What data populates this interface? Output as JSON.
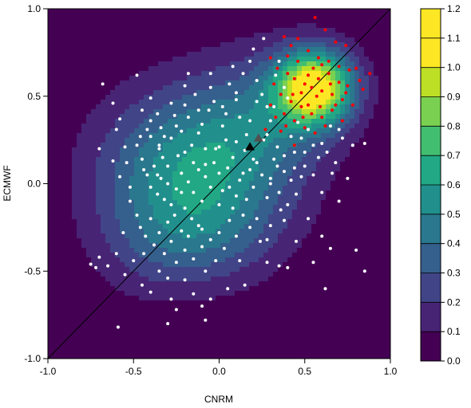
{
  "chart_data": {
    "type": "scatter",
    "title": "",
    "xlabel": "CNRM",
    "ylabel": "ECMWF",
    "xlim": [
      -1.0,
      1.0
    ],
    "ylim": [
      -1.0,
      1.0
    ],
    "x_ticks": [
      "-1.0",
      "-0.5",
      "0.0",
      "0.5",
      "1.0"
    ],
    "y_ticks": [
      "-1.0",
      "-0.5",
      "0.0",
      "0.5",
      "1.0"
    ],
    "background_density": {
      "type": "filled-contour",
      "levels": [
        0.0,
        0.1,
        0.2,
        0.3,
        0.4,
        0.5,
        0.6,
        0.7,
        0.8,
        0.9,
        1.0,
        1.1,
        1.2
      ],
      "level_labels": [
        "0.0",
        "0.1",
        "0.2",
        "0.3",
        "0.4",
        "0.5",
        "0.6",
        "0.7",
        "0.8",
        "0.9",
        "1.0",
        "1.1",
        "1.2"
      ],
      "colors": [
        "#440154",
        "#482475",
        "#414487",
        "#355f8d",
        "#2a788e",
        "#21908d",
        "#22a884",
        "#42be71",
        "#7ad151",
        "#bddf26",
        "#fde725",
        "#fde725"
      ],
      "colorbar_position": "right",
      "kernel_peaks": [
        {
          "x": 0.56,
          "y": 0.55,
          "w": 1.05,
          "sx": 0.16,
          "sy": 0.15
        },
        {
          "x": 0.3,
          "y": 0.4,
          "w": 0.25,
          "sx": 0.28,
          "sy": 0.28
        },
        {
          "x": -0.15,
          "y": 0.1,
          "w": 0.55,
          "sx": 0.38,
          "sy": 0.32
        },
        {
          "x": -0.05,
          "y": -0.3,
          "w": 0.2,
          "sx": 0.3,
          "sy": 0.22
        },
        {
          "x": -0.45,
          "y": -0.35,
          "w": 0.12,
          "sx": 0.25,
          "sy": 0.25
        }
      ]
    },
    "diagonal_line": {
      "from": [
        -1.0,
        -1.0
      ],
      "to": [
        1.0,
        1.0
      ],
      "color": "#000000"
    },
    "series": [
      {
        "color": "#ffffff",
        "points": [
          [
            -0.68,
            0.57
          ],
          [
            -0.62,
            0.46
          ],
          [
            -0.58,
            0.37
          ],
          [
            -0.55,
            0.21
          ],
          [
            -0.48,
            0.62
          ],
          [
            -0.45,
            0.42
          ],
          [
            -0.42,
            0.31
          ],
          [
            -0.4,
            0.27
          ],
          [
            -0.35,
            0.2
          ],
          [
            -0.33,
            0.15
          ],
          [
            -0.3,
            0.1
          ],
          [
            -0.28,
            0.26
          ],
          [
            -0.25,
            0.33
          ],
          [
            -0.22,
            0.3
          ],
          [
            -0.2,
            0.45
          ],
          [
            -0.18,
            0.38
          ],
          [
            -0.16,
            0.22
          ],
          [
            -0.15,
            0.12
          ],
          [
            -0.12,
            0.29
          ],
          [
            -0.1,
            0.34
          ],
          [
            -0.08,
            0.2
          ],
          [
            -0.06,
            0.42
          ],
          [
            -0.05,
            0.55
          ],
          [
            -0.03,
            0.47
          ],
          [
            0.02,
            0.33
          ],
          [
            0.04,
            0.4
          ],
          [
            0.06,
            0.57
          ],
          [
            0.1,
            0.48
          ],
          [
            0.14,
            0.63
          ],
          [
            0.18,
            0.7
          ],
          [
            0.2,
            0.77
          ],
          [
            0.22,
            0.59
          ],
          [
            0.25,
            0.51
          ],
          [
            0.28,
            0.44
          ],
          [
            0.3,
            0.36
          ],
          [
            0.33,
            0.62
          ],
          [
            0.35,
            0.7
          ],
          [
            0.38,
            0.55
          ],
          [
            0.4,
            0.49
          ],
          [
            0.42,
            0.27
          ],
          [
            0.44,
            0.18
          ],
          [
            0.46,
            0.35
          ],
          [
            0.48,
            0.26
          ],
          [
            0.5,
            0.1
          ],
          [
            0.52,
            0.31
          ],
          [
            0.55,
            0.22
          ],
          [
            0.58,
            0.15
          ],
          [
            0.6,
            0.23
          ],
          [
            0.63,
            0.18
          ],
          [
            0.65,
            0.33
          ],
          [
            0.68,
            0.12
          ],
          [
            0.7,
            0.31
          ],
          [
            0.72,
            0.26
          ],
          [
            0.78,
            0.22
          ],
          [
            0.85,
            0.23
          ],
          [
            -0.45,
            0.14
          ],
          [
            -0.42,
            0.05
          ],
          [
            -0.4,
            -0.02
          ],
          [
            -0.38,
            0.1
          ],
          [
            -0.36,
            -0.06
          ],
          [
            -0.34,
            0.03
          ],
          [
            -0.32,
            -0.09
          ],
          [
            -0.3,
            0.0
          ],
          [
            -0.28,
            -0.12
          ],
          [
            -0.25,
            -0.03
          ],
          [
            -0.22,
            0.06
          ],
          [
            -0.2,
            -0.14
          ],
          [
            -0.18,
            0.01
          ],
          [
            -0.15,
            -0.05
          ],
          [
            -0.12,
            0.08
          ],
          [
            -0.1,
            -0.1
          ],
          [
            -0.08,
            0.04
          ],
          [
            -0.05,
            -0.02
          ],
          [
            -0.03,
            0.12
          ],
          [
            0.0,
            0.06
          ],
          [
            0.02,
            -0.04
          ],
          [
            0.05,
            0.09
          ],
          [
            0.08,
            0.15
          ],
          [
            0.1,
            -0.07
          ],
          [
            0.12,
            0.02
          ],
          [
            0.15,
            0.19
          ],
          [
            0.18,
            0.08
          ],
          [
            0.2,
            -0.02
          ],
          [
            0.22,
            0.12
          ],
          [
            0.25,
            0.05
          ],
          [
            0.28,
            -0.08
          ],
          [
            0.3,
            0.03
          ],
          [
            0.32,
            0.14
          ],
          [
            0.35,
            -0.05
          ],
          [
            0.38,
            0.07
          ],
          [
            0.4,
            -0.12
          ],
          [
            0.42,
            0.02
          ],
          [
            0.45,
            -0.06
          ],
          [
            0.48,
            0.04
          ],
          [
            -0.52,
            -0.1
          ],
          [
            -0.48,
            -0.18
          ],
          [
            -0.46,
            -0.25
          ],
          [
            -0.43,
            -0.3
          ],
          [
            -0.4,
            -0.2
          ],
          [
            -0.38,
            -0.35
          ],
          [
            -0.35,
            -0.28
          ],
          [
            -0.32,
            -0.4
          ],
          [
            -0.3,
            -0.22
          ],
          [
            -0.28,
            -0.33
          ],
          [
            -0.25,
            -0.45
          ],
          [
            -0.22,
            -0.27
          ],
          [
            -0.2,
            -0.38
          ],
          [
            -0.18,
            -0.3
          ],
          [
            -0.15,
            -0.43
          ],
          [
            -0.12,
            -0.24
          ],
          [
            -0.1,
            -0.36
          ],
          [
            -0.08,
            -0.5
          ],
          [
            -0.05,
            -0.32
          ],
          [
            -0.02,
            -0.44
          ],
          [
            0.0,
            -0.28
          ],
          [
            0.03,
            -0.37
          ],
          [
            0.06,
            -0.21
          ],
          [
            0.1,
            -0.3
          ],
          [
            0.14,
            -0.18
          ],
          [
            0.18,
            -0.25
          ],
          [
            0.22,
            -0.2
          ],
          [
            0.3,
            -0.24
          ],
          [
            0.38,
            -0.21
          ],
          [
            0.45,
            -0.33
          ],
          [
            0.52,
            -0.2
          ],
          [
            0.6,
            -0.3
          ],
          [
            0.65,
            -0.37
          ],
          [
            -0.7,
            -0.42
          ],
          [
            -0.65,
            -0.47
          ],
          [
            -0.6,
            -0.4
          ],
          [
            -0.55,
            -0.52
          ],
          [
            -0.5,
            -0.44
          ],
          [
            -0.45,
            -0.58
          ],
          [
            -0.4,
            -0.62
          ],
          [
            -0.35,
            -0.5
          ],
          [
            -0.3,
            -0.54
          ],
          [
            -0.28,
            -0.66
          ],
          [
            -0.25,
            -0.72
          ],
          [
            -0.2,
            -0.55
          ],
          [
            -0.15,
            -0.63
          ],
          [
            -0.1,
            -0.7
          ],
          [
            -0.05,
            -0.66
          ],
          [
            0.05,
            -0.6
          ],
          [
            0.15,
            -0.58
          ],
          [
            0.28,
            -0.45
          ],
          [
            0.35,
            -0.47
          ],
          [
            0.4,
            -0.48
          ],
          [
            0.55,
            -0.45
          ],
          [
            0.62,
            -0.6
          ],
          [
            0.8,
            -0.38
          ],
          [
            0.85,
            -0.5
          ],
          [
            -0.75,
            -0.46
          ],
          [
            -0.72,
            -0.48
          ],
          [
            -0.59,
            -0.82
          ],
          [
            -0.3,
            -0.8
          ],
          [
            -0.08,
            -0.78
          ],
          [
            0.0,
            0.21
          ],
          [
            -0.58,
            0.04
          ],
          [
            -0.52,
            -0.02
          ],
          [
            -0.48,
            0.22
          ],
          [
            -0.4,
            0.49
          ],
          [
            -0.36,
            0.4
          ],
          [
            -0.6,
            0.31
          ],
          [
            -0.2,
            0.56
          ],
          [
            -0.14,
            0.51
          ],
          [
            0.08,
            0.67
          ],
          [
            0.26,
            0.83
          ],
          [
            -0.05,
            0.63
          ],
          [
            -0.18,
            0.63
          ],
          [
            -0.4,
            0.36
          ],
          [
            -0.28,
            0.46
          ],
          [
            -0.32,
            0.27
          ],
          [
            -0.26,
            0.39
          ],
          [
            0.16,
            0.28
          ],
          [
            0.12,
            0.38
          ],
          [
            0.04,
            0.25
          ],
          [
            0.2,
            0.14
          ],
          [
            -0.02,
            0.2
          ],
          [
            -0.2,
            0.18
          ],
          [
            0.26,
            0.25
          ],
          [
            0.34,
            0.21
          ],
          [
            -0.22,
            -0.05
          ],
          [
            -0.35,
            0.22
          ],
          [
            0.1,
            0.52
          ],
          [
            0.3,
            0.0
          ],
          [
            0.36,
            -0.15
          ],
          [
            -0.56,
            -0.28
          ],
          [
            -0.44,
            -0.4
          ],
          [
            -0.16,
            -0.2
          ],
          [
            0.0,
            -0.12
          ],
          [
            0.24,
            -0.33
          ],
          [
            -0.62,
            0.13
          ],
          [
            -0.08,
            0.11
          ],
          [
            0.44,
            0.09
          ],
          [
            0.55,
            0.05
          ],
          [
            0.66,
            0.06
          ],
          [
            0.75,
            0.03
          ],
          [
            0.6,
            -0.05
          ],
          [
            0.7,
            -0.1
          ],
          [
            -0.7,
            0.2
          ],
          [
            -0.36,
            0.05
          ],
          [
            -0.26,
            -0.18
          ],
          [
            0.08,
            -0.14
          ],
          [
            0.16,
            -0.09
          ],
          [
            0.02,
            0.44
          ],
          [
            0.22,
            0.47
          ],
          [
            0.28,
            0.28
          ],
          [
            0.38,
            0.16
          ],
          [
            -0.12,
            0.42
          ],
          [
            -0.34,
            0.32
          ],
          [
            -0.46,
            0.27
          ],
          [
            0.32,
            0.44
          ],
          [
            0.18,
            0.36
          ],
          [
            0.1,
            0.24
          ],
          [
            -0.54,
            0.12
          ],
          [
            -0.1,
            -0.26
          ],
          [
            0.12,
            -0.44
          ],
          [
            0.28,
            -0.32
          ],
          [
            -0.44,
            0.08
          ],
          [
            -0.24,
            0.16
          ],
          [
            0.06,
            -0.02
          ],
          [
            0.14,
            0.06
          ],
          [
            0.34,
            0.1
          ],
          [
            0.5,
            0.18
          ]
        ]
      },
      {
        "color": "#ff0000",
        "points": [
          [
            0.56,
            0.95
          ],
          [
            0.62,
            0.88
          ],
          [
            0.68,
            0.81
          ],
          [
            0.74,
            0.79
          ],
          [
            0.38,
            0.84
          ],
          [
            0.42,
            0.79
          ],
          [
            0.46,
            0.83
          ],
          [
            0.52,
            0.76
          ],
          [
            0.58,
            0.72
          ],
          [
            0.64,
            0.7
          ],
          [
            0.7,
            0.67
          ],
          [
            0.76,
            0.65
          ],
          [
            0.82,
            0.59
          ],
          [
            0.88,
            0.63
          ],
          [
            0.3,
            0.72
          ],
          [
            0.34,
            0.66
          ],
          [
            0.4,
            0.63
          ],
          [
            0.44,
            0.6
          ],
          [
            0.5,
            0.57
          ],
          [
            0.54,
            0.55
          ],
          [
            0.6,
            0.53
          ],
          [
            0.66,
            0.51
          ],
          [
            0.72,
            0.48
          ],
          [
            0.78,
            0.45
          ],
          [
            0.84,
            0.54
          ],
          [
            0.32,
            0.57
          ],
          [
            0.36,
            0.51
          ],
          [
            0.42,
            0.47
          ],
          [
            0.48,
            0.44
          ],
          [
            0.54,
            0.4
          ],
          [
            0.6,
            0.38
          ],
          [
            0.66,
            0.42
          ],
          [
            0.72,
            0.36
          ],
          [
            0.3,
            0.45
          ],
          [
            0.38,
            0.4
          ],
          [
            0.44,
            0.36
          ],
          [
            0.5,
            0.32
          ],
          [
            0.56,
            0.29
          ],
          [
            0.62,
            0.33
          ],
          [
            0.44,
            0.22
          ],
          [
            0.36,
            0.3
          ],
          [
            0.52,
            0.45
          ],
          [
            0.58,
            0.6
          ],
          [
            0.64,
            0.63
          ],
          [
            0.46,
            0.7
          ],
          [
            0.4,
            0.73
          ],
          [
            0.55,
            0.66
          ],
          [
            0.6,
            0.68
          ],
          [
            0.48,
            0.52
          ],
          [
            0.52,
            0.62
          ],
          [
            0.65,
            0.57
          ],
          [
            0.7,
            0.58
          ],
          [
            0.75,
            0.56
          ],
          [
            0.33,
            0.38
          ],
          [
            0.27,
            0.31
          ],
          [
            0.8,
            0.66
          ],
          [
            0.57,
            0.5
          ],
          [
            0.43,
            0.51
          ],
          [
            0.49,
            0.38
          ],
          [
            0.39,
            0.33
          ],
          [
            0.59,
            0.44
          ],
          [
            0.68,
            0.45
          ],
          [
            0.74,
            0.52
          ]
        ]
      }
    ],
    "markers": [
      {
        "shape": "triangle",
        "color": "#000000",
        "x": 0.18,
        "y": 0.21
      },
      {
        "shape": "triangle",
        "color": "#505050",
        "x": 0.23,
        "y": 0.26
      }
    ]
  }
}
